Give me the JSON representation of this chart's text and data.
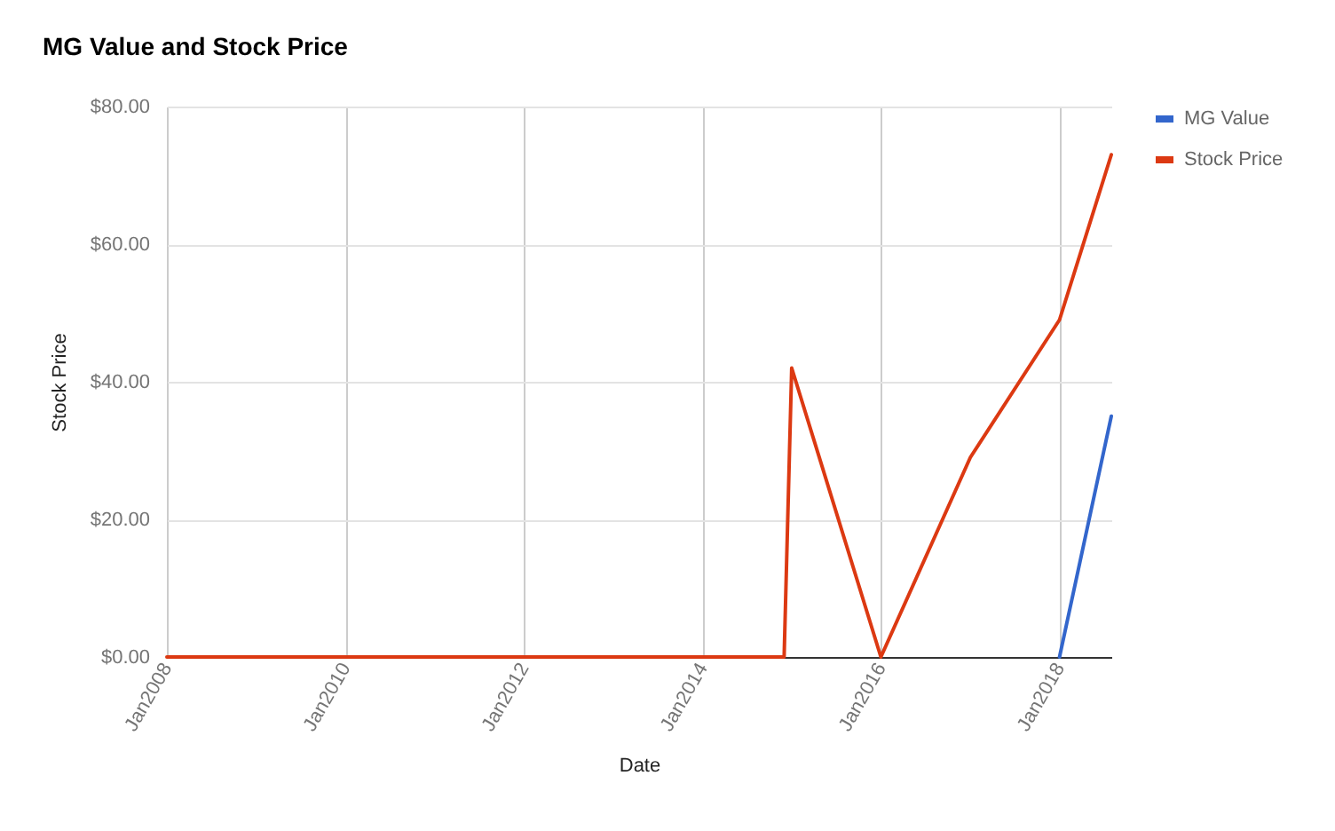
{
  "chart_data": {
    "type": "line",
    "title": "MG Value and Stock Price",
    "xlabel": "Date",
    "ylabel": "Stock Price",
    "series": [
      {
        "name": "MG Value",
        "color": "#3366cc",
        "x": [
          "2018-01",
          "2018-08"
        ],
        "values": [
          0,
          35
        ]
      },
      {
        "name": "Stock Price",
        "color": "#dc3912",
        "x": [
          "2008-01",
          "2014-12",
          "2015-01",
          "2016-01",
          "2017-01",
          "2018-01",
          "2018-08"
        ],
        "values": [
          0,
          0,
          42,
          0,
          29,
          49,
          73
        ]
      }
    ],
    "xlim": [
      "2008-01",
      "2018-08"
    ],
    "xticks": [
      {
        "value": "2008-01",
        "label": "Jan2008"
      },
      {
        "value": "2010-01",
        "label": "Jan2010"
      },
      {
        "value": "2012-01",
        "label": "Jan2012"
      },
      {
        "value": "2014-01",
        "label": "Jan2014"
      },
      {
        "value": "2016-01",
        "label": "Jan2016"
      },
      {
        "value": "2018-01",
        "label": "Jan2018"
      }
    ],
    "ylim": [
      0,
      80
    ],
    "yticks": [
      {
        "value": 0,
        "label": "$0.00"
      },
      {
        "value": 20,
        "label": "$20.00"
      },
      {
        "value": 40,
        "label": "$40.00"
      },
      {
        "value": 60,
        "label": "$60.00"
      },
      {
        "value": 80,
        "label": "$80.00"
      }
    ],
    "grid": true,
    "legend": "top right"
  }
}
